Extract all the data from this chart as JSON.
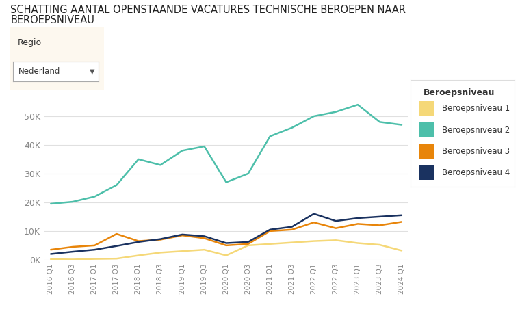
{
  "title_line1": "SCHATTING AANTAL OPENSTAANDE VACATURES TECHNISCHE BEROEPEN NAAR",
  "title_line2": "BEROEPSNIVEAU",
  "background_color": "#ffffff",
  "plot_bg_color": "#ffffff",
  "legend_title": "Beroepsniveau",
  "legend_labels": [
    "Beroepsniveau 1",
    "Beroepsniveau 2",
    "Beroepsniveau 3",
    "Beroepsniveau 4"
  ],
  "line_colors": [
    "#f5d878",
    "#4dbfaa",
    "#e8850a",
    "#1a3260"
  ],
  "x_labels": [
    "2016 Q1",
    "2016 Q3",
    "2017 Q1",
    "2017 Q3",
    "2018 Q1",
    "2018 Q3",
    "2019 Q1",
    "2019 Q3",
    "2020 Q1",
    "2020 Q3",
    "2021 Q1",
    "2021 Q3",
    "2022 Q1",
    "2022 Q3",
    "2023 Q1",
    "2023 Q3",
    "2024 Q1"
  ],
  "ylim": [
    0,
    58000
  ],
  "yticks": [
    0,
    10000,
    20000,
    30000,
    40000,
    50000
  ],
  "ytick_labels": [
    "0K",
    "10K",
    "20K",
    "30K",
    "40K",
    "50K"
  ],
  "series": {
    "Beroepsniveau 1": [
      200,
      100,
      300,
      400,
      1500,
      2500,
      3000,
      3500,
      1500,
      5000,
      5500,
      6000,
      6500,
      6800,
      5800,
      5200,
      3200
    ],
    "Beroepsniveau 2": [
      19500,
      20200,
      22000,
      26000,
      35000,
      33000,
      38000,
      39500,
      27000,
      30000,
      43000,
      46000,
      50000,
      51500,
      54000,
      48000,
      47000
    ],
    "Beroepsniveau 3": [
      3500,
      4500,
      5000,
      9000,
      6500,
      7000,
      8500,
      7500,
      5000,
      5500,
      10000,
      10500,
      13000,
      11000,
      12500,
      12000,
      13200
    ],
    "Beroepsniveau 4": [
      2000,
      2800,
      3500,
      4800,
      6200,
      7200,
      8800,
      8200,
      5800,
      6200,
      10500,
      11500,
      16000,
      13500,
      14500,
      15000,
      15500
    ]
  },
  "regio_label": "Regio",
  "dropdown_text": "Nederland",
  "filter_bg": "#fdf8ef"
}
